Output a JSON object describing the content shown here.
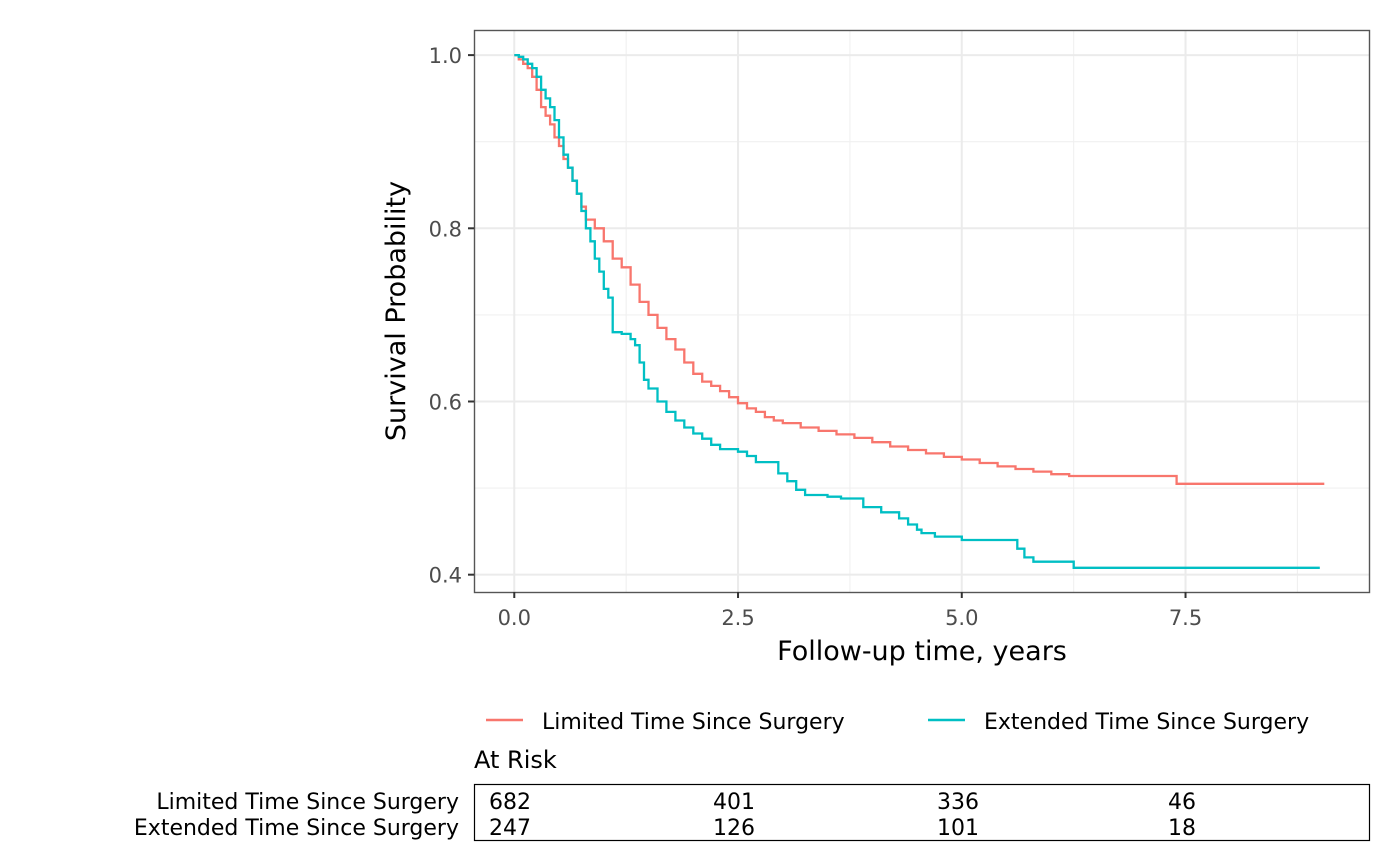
{
  "chart_data": {
    "type": "line",
    "subtype": "kaplan-meier step",
    "title": "",
    "xlabel": "Follow-up time, years",
    "ylabel": "Survival Probability",
    "xlim": [
      -0.45,
      9.55
    ],
    "ylim": [
      0.38,
      1.029
    ],
    "x_ticks": [
      0.0,
      2.5,
      5.0,
      7.5
    ],
    "x_tick_labels": [
      "0.0",
      "2.5",
      "5.0",
      "7.5"
    ],
    "y_ticks": [
      0.4,
      0.6,
      0.8,
      1.0
    ],
    "y_tick_labels": [
      "0.4",
      "0.6",
      "0.8",
      "1.0"
    ],
    "grid": true,
    "legend_position": "bottom",
    "series": [
      {
        "name": "Limited Time Since Surgery",
        "color": "#F8766D",
        "x": [
          0,
          0.05,
          0.1,
          0.15,
          0.2,
          0.25,
          0.3,
          0.35,
          0.4,
          0.45,
          0.5,
          0.55,
          0.6,
          0.65,
          0.7,
          0.75,
          0.8,
          0.9,
          1.0,
          1.1,
          1.2,
          1.3,
          1.4,
          1.5,
          1.6,
          1.7,
          1.8,
          1.9,
          2.0,
          2.1,
          2.2,
          2.3,
          2.4,
          2.5,
          2.6,
          2.7,
          2.8,
          2.9,
          3.0,
          3.2,
          3.4,
          3.6,
          3.8,
          4.0,
          4.2,
          4.4,
          4.6,
          4.8,
          5.0,
          5.2,
          5.4,
          5.6,
          5.8,
          6.0,
          6.2,
          6.5,
          7.0,
          7.4,
          9.05
        ],
        "y": [
          1.0,
          0.995,
          0.99,
          0.985,
          0.975,
          0.96,
          0.94,
          0.93,
          0.92,
          0.905,
          0.895,
          0.88,
          0.87,
          0.855,
          0.84,
          0.825,
          0.81,
          0.8,
          0.785,
          0.765,
          0.755,
          0.735,
          0.715,
          0.7,
          0.685,
          0.672,
          0.66,
          0.645,
          0.632,
          0.623,
          0.618,
          0.612,
          0.605,
          0.598,
          0.592,
          0.588,
          0.582,
          0.578,
          0.575,
          0.57,
          0.566,
          0.562,
          0.558,
          0.553,
          0.548,
          0.544,
          0.54,
          0.536,
          0.533,
          0.529,
          0.525,
          0.522,
          0.519,
          0.516,
          0.514,
          0.514,
          0.514,
          0.505,
          0.505
        ]
      },
      {
        "name": "Extended Time Since Surgery",
        "color": "#00BFC4",
        "x": [
          0,
          0.05,
          0.1,
          0.15,
          0.2,
          0.25,
          0.3,
          0.35,
          0.4,
          0.45,
          0.5,
          0.55,
          0.6,
          0.65,
          0.7,
          0.75,
          0.8,
          0.85,
          0.9,
          0.95,
          1.0,
          1.05,
          1.1,
          1.2,
          1.3,
          1.35,
          1.4,
          1.45,
          1.5,
          1.6,
          1.7,
          1.8,
          1.9,
          2.0,
          2.1,
          2.2,
          2.3,
          2.5,
          2.6,
          2.7,
          2.95,
          3.05,
          3.15,
          3.25,
          3.5,
          3.65,
          3.9,
          4.1,
          4.3,
          4.4,
          4.5,
          4.55,
          4.7,
          5.0,
          5.55,
          5.62,
          5.7,
          5.8,
          6.0,
          6.25,
          9.0
        ],
        "y": [
          1.0,
          0.998,
          0.995,
          0.99,
          0.985,
          0.975,
          0.96,
          0.95,
          0.94,
          0.925,
          0.905,
          0.885,
          0.87,
          0.855,
          0.84,
          0.82,
          0.8,
          0.785,
          0.765,
          0.75,
          0.73,
          0.72,
          0.68,
          0.678,
          0.672,
          0.665,
          0.645,
          0.625,
          0.615,
          0.6,
          0.588,
          0.578,
          0.57,
          0.563,
          0.557,
          0.55,
          0.545,
          0.542,
          0.537,
          0.53,
          0.517,
          0.508,
          0.498,
          0.492,
          0.49,
          0.488,
          0.478,
          0.472,
          0.465,
          0.458,
          0.452,
          0.448,
          0.444,
          0.44,
          0.44,
          0.43,
          0.42,
          0.415,
          0.415,
          0.408,
          0.408
        ]
      }
    ]
  },
  "legend": {
    "items": [
      {
        "label": "Limited Time Since Surgery",
        "color": "#F8766D"
      },
      {
        "label": "Extended Time Since Surgery",
        "color": "#00BFC4"
      }
    ]
  },
  "risk_table": {
    "title": "At Risk",
    "time_points": [
      0.0,
      2.5,
      5.0,
      7.5
    ],
    "rows": [
      {
        "label": "Limited Time Since Surgery",
        "values": [
          "682",
          "401",
          "336",
          "46"
        ]
      },
      {
        "label": "Extended Time Since Surgery",
        "values": [
          "247",
          "126",
          "101",
          "18"
        ]
      }
    ]
  }
}
